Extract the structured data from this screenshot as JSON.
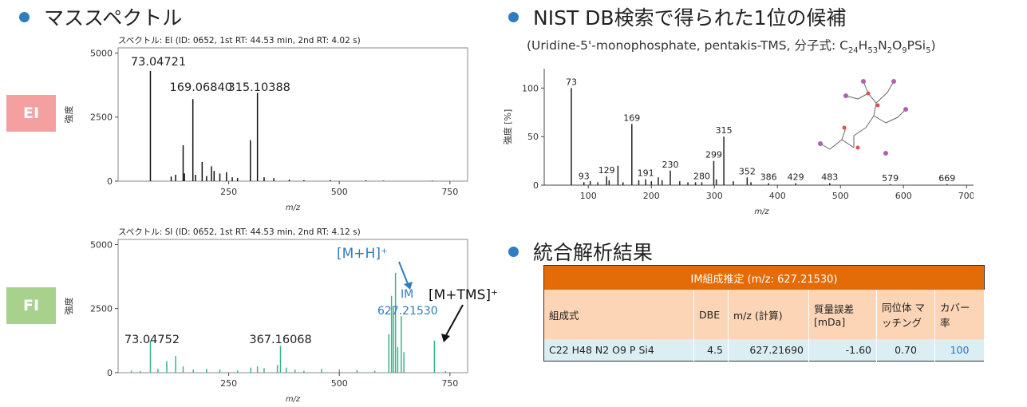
{
  "headings": {
    "mass_spectrum": "マススペクトル",
    "nist": "NIST DB検索で得られた1位の候補",
    "nist_sub_pre": "(Uridine-5'-monophosphate, pentakis-TMS, 分子式: ",
    "nist_formula": [
      [
        "C",
        "24"
      ],
      [
        "H",
        "53"
      ],
      [
        "N",
        "2"
      ],
      [
        "O",
        "9"
      ],
      [
        "PSi",
        "5"
      ]
    ],
    "nist_sub_post": ")",
    "integrated": "統合解析結果"
  },
  "tags": {
    "ei": "EI",
    "fi": "FI"
  },
  "colors": {
    "ei_tag": "#f4a0a0",
    "fi_tag": "#a9d18e",
    "bullet": "#2e7dc1",
    "fi_bars": "#3cb48a",
    "im_label": "#2e7dc1",
    "table_header": "#e36c09",
    "table_sub": "#fbd5b5",
    "table_row": "#daeef3"
  },
  "chart_data": [
    {
      "type": "bar",
      "title": "スペクトル: EI (ID: 0652, 1st RT: 44.53 min, 2nd RT: 4.02 s)",
      "xlabel": "m/z",
      "ylabel": "強度",
      "xlim": [
        0,
        790
      ],
      "ylim": [
        0,
        5200
      ],
      "xticks": [
        250,
        500,
        750
      ],
      "yticks": [
        0,
        2500,
        5000
      ],
      "peaks": [
        [
          73,
          4300
        ],
        [
          120,
          180
        ],
        [
          130,
          250
        ],
        [
          147,
          1400
        ],
        [
          150,
          300
        ],
        [
          169,
          3200
        ],
        [
          175,
          250
        ],
        [
          190,
          750
        ],
        [
          200,
          200
        ],
        [
          211,
          580
        ],
        [
          217,
          400
        ],
        [
          230,
          300
        ],
        [
          245,
          350
        ],
        [
          258,
          150
        ],
        [
          270,
          120
        ],
        [
          299,
          1600
        ],
        [
          315,
          3450
        ],
        [
          330,
          150
        ],
        [
          352,
          120
        ],
        [
          387,
          60
        ],
        [
          420,
          40
        ],
        [
          480,
          40
        ],
        [
          560,
          30
        ],
        [
          600,
          20
        ],
        [
          710,
          20
        ]
      ],
      "labels": [
        {
          "x": 73.04721,
          "text": "73.04721"
        },
        {
          "x": 169.0684,
          "text": "169.06840"
        },
        {
          "x": 315.10388,
          "text": "315.10388"
        }
      ]
    },
    {
      "type": "bar",
      "title": "スペクトル: SI (ID: 0652, 1st RT: 44.53 min, 2nd RT: 4.12 s)",
      "xlabel": "m/z",
      "ylabel": "強度",
      "xlim": [
        0,
        790
      ],
      "ylim": [
        0,
        5200
      ],
      "xticks": [
        250,
        500,
        750
      ],
      "yticks": [
        0,
        2500,
        5000
      ],
      "peaks": [
        [
          30,
          80
        ],
        [
          50,
          60
        ],
        [
          73,
          1250
        ],
        [
          90,
          150
        ],
        [
          110,
          450
        ],
        [
          130,
          650
        ],
        [
          147,
          250
        ],
        [
          170,
          120
        ],
        [
          200,
          150
        ],
        [
          230,
          120
        ],
        [
          270,
          90
        ],
        [
          300,
          200
        ],
        [
          315,
          250
        ],
        [
          330,
          180
        ],
        [
          360,
          300
        ],
        [
          367,
          1050
        ],
        [
          380,
          200
        ],
        [
          400,
          120
        ],
        [
          420,
          80
        ],
        [
          460,
          150
        ],
        [
          500,
          120
        ],
        [
          540,
          100
        ],
        [
          580,
          80
        ],
        [
          612,
          1500
        ],
        [
          618,
          3000
        ],
        [
          622,
          2600
        ],
        [
          627,
          3900
        ],
        [
          632,
          1000
        ],
        [
          640,
          2200
        ],
        [
          646,
          800
        ],
        [
          715,
          1250
        ],
        [
          740,
          60
        ]
      ],
      "labels": [
        {
          "x": 73.04752,
          "text": "73.04752"
        },
        {
          "x": 367.16068,
          "text": "367.16068"
        }
      ],
      "annotations": {
        "mh": "[M+H]⁺",
        "im": "IM",
        "im_mz": "627.21530",
        "mtms": "[M+TMS]⁺"
      }
    },
    {
      "type": "bar",
      "title": "",
      "xlabel": "m/z",
      "ylabel": "強度 [%]",
      "xlim": [
        30,
        720
      ],
      "ylim": [
        0,
        120
      ],
      "xticks": [
        100,
        200,
        300,
        400,
        500,
        600,
        700
      ],
      "yticks": [
        0,
        50,
        100
      ],
      "peaks": [
        [
          73,
          100
        ],
        [
          93,
          3
        ],
        [
          103,
          4
        ],
        [
          115,
          3
        ],
        [
          129,
          9
        ],
        [
          133,
          5
        ],
        [
          147,
          20
        ],
        [
          155,
          3
        ],
        [
          169,
          63
        ],
        [
          180,
          5
        ],
        [
          191,
          6
        ],
        [
          200,
          4
        ],
        [
          211,
          8
        ],
        [
          217,
          5
        ],
        [
          230,
          15
        ],
        [
          245,
          4
        ],
        [
          258,
          3
        ],
        [
          270,
          3
        ],
        [
          280,
          3
        ],
        [
          299,
          25
        ],
        [
          303,
          6
        ],
        [
          315,
          50
        ],
        [
          330,
          4
        ],
        [
          352,
          8
        ],
        [
          358,
          3
        ],
        [
          386,
          2
        ],
        [
          429,
          2
        ],
        [
          483,
          2
        ],
        [
          579,
          1
        ],
        [
          669,
          1
        ]
      ],
      "labels": [
        {
          "x": 73,
          "text": "73"
        },
        {
          "x": 93,
          "text": "93"
        },
        {
          "x": 129,
          "text": "129"
        },
        {
          "x": 169,
          "text": "169"
        },
        {
          "x": 191,
          "text": "191"
        },
        {
          "x": 230,
          "text": "230"
        },
        {
          "x": 280,
          "text": "280"
        },
        {
          "x": 299,
          "text": "299"
        },
        {
          "x": 315,
          "text": "315"
        },
        {
          "x": 352,
          "text": "352"
        },
        {
          "x": 386,
          "text": "386"
        },
        {
          "x": 429,
          "text": "429"
        },
        {
          "x": 483,
          "text": "483"
        },
        {
          "x": 579,
          "text": "579"
        },
        {
          "x": 669,
          "text": "669"
        }
      ]
    }
  ],
  "table": {
    "caption": "IM組成推定 (m/z: 627.21530)",
    "headers": [
      "組成式",
      "DBE",
      "m/z (計算)",
      "質量誤差 [mDa]",
      "同位体 マッチング",
      "カバー率"
    ],
    "rows": [
      [
        "C22 H48 N2 O9 P Si4",
        "4.5",
        "627.21690",
        "-1.60",
        "0.70",
        "100"
      ]
    ]
  }
}
